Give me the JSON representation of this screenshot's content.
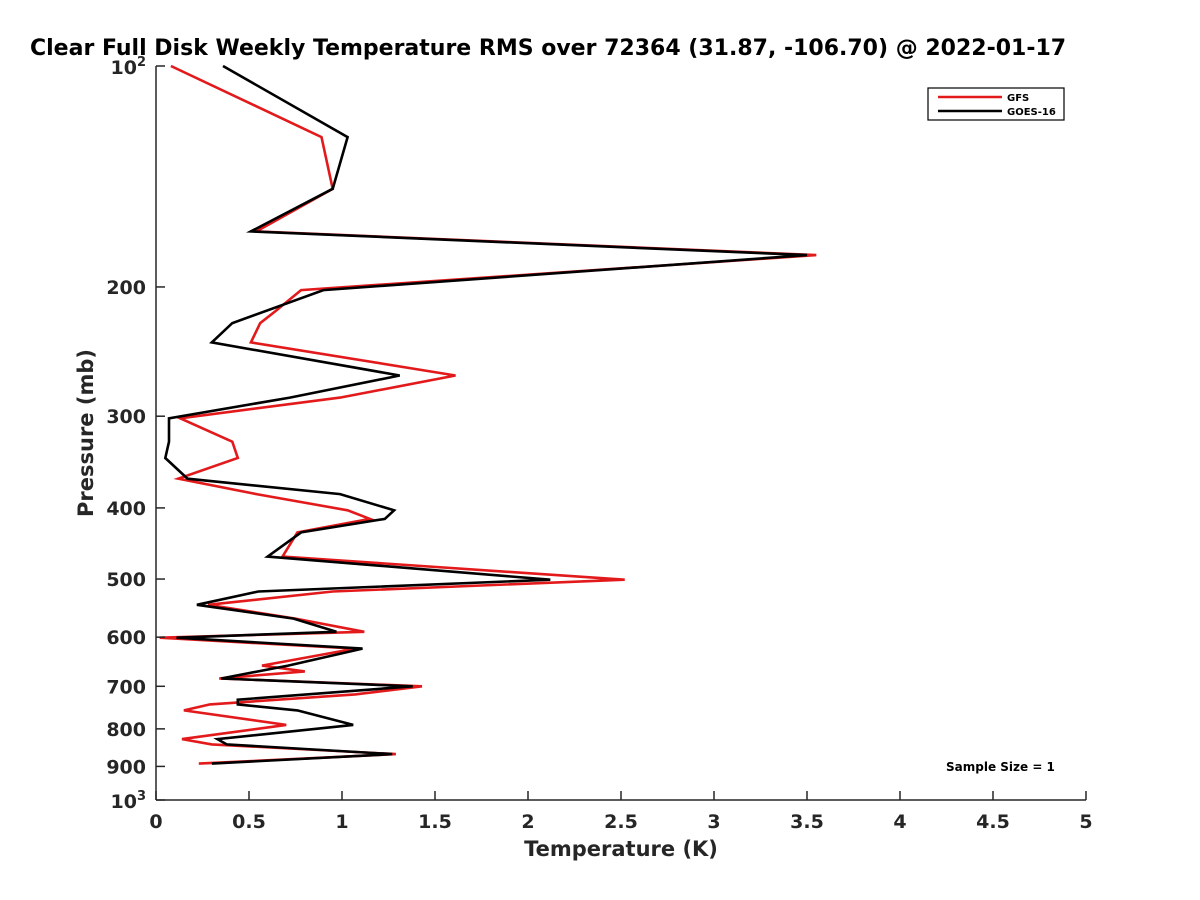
{
  "chart_data": {
    "type": "line",
    "title": "Clear Full Disk Weekly Temperature RMS over 72364 (31.87, -106.70) @ 2022-01-17",
    "xlabel": "Temperature (K)",
    "ylabel": "Pressure (mb)",
    "xlim": [
      0,
      5
    ],
    "ylim": [
      100,
      1000
    ],
    "y_scale": "log",
    "y_reversed": true,
    "x_ticks": [
      "0",
      "0.5",
      "1",
      "1.5",
      "2",
      "2.5",
      "3",
      "3.5",
      "4",
      "4.5",
      "5"
    ],
    "y_ticks": [
      {
        "value": 100,
        "base": "10",
        "exp": "2"
      },
      {
        "value": 200,
        "label": "200"
      },
      {
        "value": 300,
        "label": "300"
      },
      {
        "value": 400,
        "label": "400"
      },
      {
        "value": 500,
        "label": "500"
      },
      {
        "value": 600,
        "label": "600"
      },
      {
        "value": 700,
        "label": "700"
      },
      {
        "value": 800,
        "label": "800"
      },
      {
        "value": 900,
        "label": "900"
      },
      {
        "value": 1000,
        "base": "10",
        "exp": "3"
      }
    ],
    "legend_position": "top-right",
    "grid": false,
    "annotation": "Sample Size = 1",
    "series": [
      {
        "name": "GFS",
        "color": "#e31a1c",
        "points": [
          [
            0.08,
            100
          ],
          [
            0.89,
            125
          ],
          [
            0.95,
            147
          ],
          [
            0.54,
            168
          ],
          [
            3.55,
            181
          ],
          [
            0.78,
            202
          ],
          [
            0.64,
            216
          ],
          [
            0.56,
            224
          ],
          [
            0.51,
            238
          ],
          [
            1.61,
            264
          ],
          [
            0.99,
            283
          ],
          [
            0.13,
            302
          ],
          [
            0.41,
            325
          ],
          [
            0.44,
            342
          ],
          [
            0.12,
            365
          ],
          [
            0.54,
            383
          ],
          [
            1.03,
            403
          ],
          [
            1.15,
            414
          ],
          [
            0.76,
            432
          ],
          [
            0.68,
            466
          ],
          [
            2.52,
            501
          ],
          [
            0.95,
            520
          ],
          [
            0.28,
            542
          ],
          [
            0.75,
            566
          ],
          [
            1.12,
            590
          ],
          [
            0.02,
            601
          ],
          [
            1.07,
            622
          ],
          [
            0.57,
            656
          ],
          [
            0.8,
            668
          ],
          [
            0.34,
            683
          ],
          [
            1.43,
            700
          ],
          [
            1.07,
            718
          ],
          [
            0.29,
            741
          ],
          [
            0.15,
            755
          ],
          [
            0.7,
            790
          ],
          [
            0.14,
            826
          ],
          [
            0.3,
            840
          ],
          [
            1.29,
            866
          ],
          [
            0.23,
            892
          ]
        ]
      },
      {
        "name": "GOES-16",
        "color": "#000000",
        "points": [
          [
            0.36,
            100
          ],
          [
            1.03,
            125
          ],
          [
            0.95,
            147
          ],
          [
            0.51,
            168
          ],
          [
            3.5,
            181
          ],
          [
            0.9,
            202
          ],
          [
            0.41,
            224
          ],
          [
            0.3,
            238
          ],
          [
            1.31,
            264
          ],
          [
            0.72,
            283
          ],
          [
            0.07,
            302
          ],
          [
            0.07,
            325
          ],
          [
            0.05,
            342
          ],
          [
            0.17,
            365
          ],
          [
            0.99,
            383
          ],
          [
            1.28,
            403
          ],
          [
            1.23,
            414
          ],
          [
            0.78,
            432
          ],
          [
            0.6,
            466
          ],
          [
            2.12,
            501
          ],
          [
            0.55,
            520
          ],
          [
            0.22,
            542
          ],
          [
            0.74,
            566
          ],
          [
            0.97,
            590
          ],
          [
            0.11,
            601
          ],
          [
            1.11,
            622
          ],
          [
            0.71,
            656
          ],
          [
            0.35,
            683
          ],
          [
            1.38,
            700
          ],
          [
            0.44,
            730
          ],
          [
            0.44,
            741
          ],
          [
            0.76,
            755
          ],
          [
            1.06,
            790
          ],
          [
            0.33,
            826
          ],
          [
            0.38,
            840
          ],
          [
            1.27,
            866
          ],
          [
            0.3,
            892
          ]
        ]
      }
    ]
  }
}
